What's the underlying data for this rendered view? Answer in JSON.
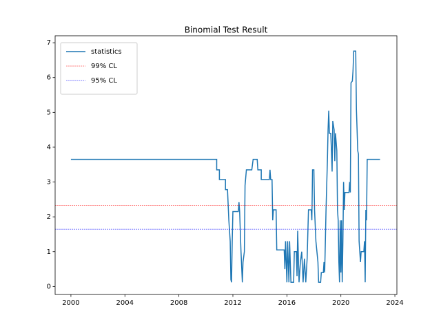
{
  "chart_data": {
    "type": "line",
    "title": "Binomial Test Result",
    "x": [
      2000,
      2010.8,
      2010.8,
      2011.0,
      2011.0,
      2011.45,
      2011.45,
      2011.6,
      2011.7,
      2011.8,
      2011.85,
      2011.9,
      2011.95,
      2012.0,
      2012.4,
      2012.45,
      2012.5,
      2012.6,
      2012.7,
      2012.75,
      2012.85,
      2012.9,
      2013.0,
      2013.4,
      2013.5,
      2013.8,
      2013.85,
      2014.1,
      2014.1,
      2014.7,
      2014.75,
      2014.8,
      2014.9,
      2014.95,
      2015.0,
      2015.2,
      2015.25,
      2015.8,
      2015.85,
      2015.9,
      2016.0,
      2016.05,
      2016.15,
      2016.2,
      2016.3,
      2016.5,
      2016.55,
      2016.7,
      2016.75,
      2016.8,
      2016.9,
      2017.0,
      2017.1,
      2017.2,
      2017.3,
      2017.4,
      2017.5,
      2017.6,
      2017.8,
      2017.85,
      2017.9,
      2018.0,
      2018.05,
      2018.15,
      2018.3,
      2018.35,
      2018.5,
      2018.55,
      2018.7,
      2018.75,
      2018.8,
      2018.9,
      2019.0,
      2019.05,
      2019.1,
      2019.15,
      2019.25,
      2019.3,
      2019.35,
      2019.4,
      2019.5,
      2019.55,
      2019.6,
      2019.7,
      2019.75,
      2019.8,
      2019.85,
      2019.9,
      2019.95,
      2020.0,
      2020.05,
      2020.1,
      2020.15,
      2020.2,
      2020.25,
      2020.3,
      2020.6,
      2020.65,
      2020.7,
      2020.75,
      2020.85,
      2020.9,
      2020.95,
      2021.1,
      2021.15,
      2021.25,
      2021.3,
      2021.35,
      2021.45,
      2021.5,
      2021.7,
      2021.75,
      2021.8,
      2021.85,
      2021.9,
      2021.95,
      2022.9
    ],
    "series": [
      {
        "name": "statistics",
        "color": "#1f77b4",
        "values": [
          3.65,
          3.65,
          3.35,
          3.35,
          3.07,
          3.07,
          2.78,
          2.78,
          1.9,
          1.3,
          0.2,
          0.12,
          1.3,
          2.15,
          2.15,
          2.42,
          2.15,
          1.0,
          0.12,
          0.7,
          1.0,
          2.9,
          3.35,
          3.35,
          3.65,
          3.65,
          3.35,
          3.35,
          3.07,
          3.07,
          3.35,
          3.07,
          3.07,
          1.9,
          2.2,
          2.2,
          1.05,
          1.05,
          0.5,
          1.3,
          0.12,
          1.3,
          0.12,
          1.3,
          0.12,
          0.12,
          1.0,
          1.0,
          0.3,
          1.6,
          0.12,
          0.7,
          1.0,
          0.12,
          0.8,
          0.12,
          0.8,
          2.2,
          2.2,
          1.9,
          3.35,
          3.35,
          2.2,
          1.3,
          0.7,
          0.12,
          0.12,
          0.4,
          0.4,
          0.7,
          0.4,
          2.2,
          3.6,
          4.5,
          5.05,
          4.4,
          4.4,
          3.9,
          3.3,
          4.75,
          4.5,
          3.6,
          4.4,
          3.9,
          2.2,
          1.9,
          0.7,
          0.12,
          1.9,
          0.4,
          1.9,
          0.12,
          1.3,
          3.0,
          2.2,
          2.7,
          2.7,
          3.0,
          2.7,
          5.85,
          5.9,
          6.2,
          6.76,
          6.76,
          5.1,
          3.9,
          3.8,
          1.3,
          0.7,
          1.0,
          1.0,
          1.3,
          0.12,
          2.2,
          1.9,
          3.65,
          3.65
        ]
      }
    ],
    "hlines": [
      {
        "name": "99% CL",
        "color": "red",
        "value": 2.326
      },
      {
        "name": "95% CL",
        "color": "blue",
        "value": 1.645
      }
    ],
    "xlim": [
      1998.83,
      2024.15
    ],
    "ylim": [
      -0.23,
      7.2
    ],
    "xticks": [
      2000,
      2004,
      2008,
      2012,
      2016,
      2020,
      2024
    ],
    "yticks": [
      0,
      1,
      2,
      3,
      4,
      5,
      6,
      7
    ],
    "legend": "upper left"
  }
}
